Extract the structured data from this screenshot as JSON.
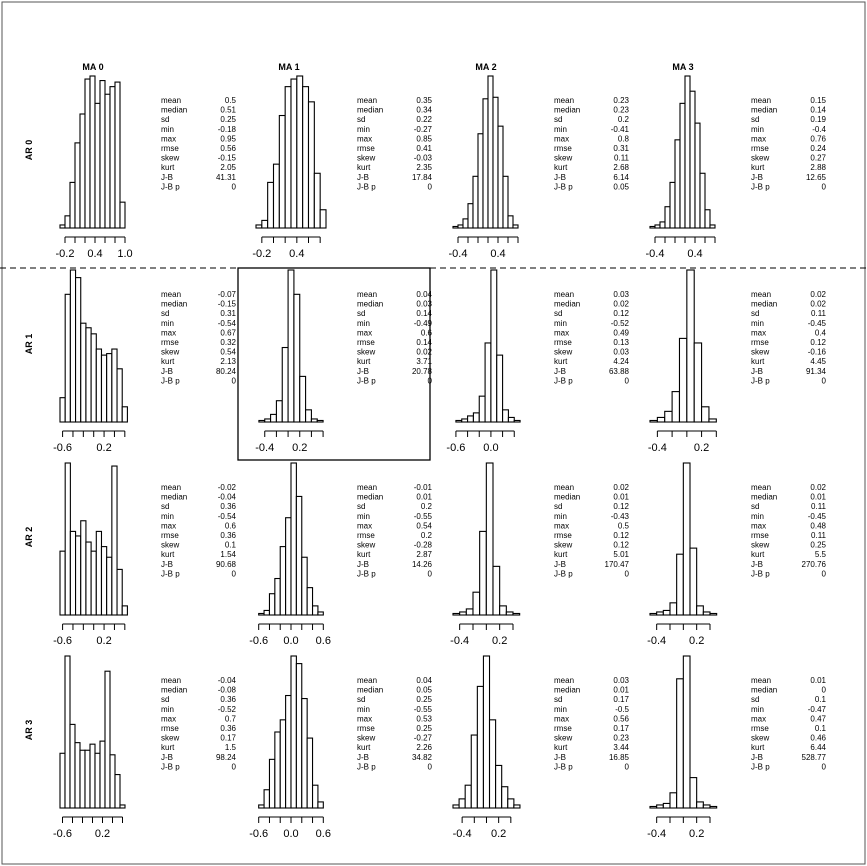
{
  "figure": {
    "col_titles": [
      "MA 0",
      "MA 1",
      "MA 2",
      "MA 3"
    ],
    "row_titles": [
      "AR 0",
      "AR 1",
      "AR 2",
      "AR 3"
    ],
    "stat_labels": [
      "mean",
      "median",
      "sd",
      "min",
      "max",
      "rmse",
      "skew",
      "kurt",
      "J-B",
      "J-B p"
    ],
    "highlighted_cell": {
      "row": 1,
      "col": 1
    },
    "divider_after_row": 0
  },
  "chart_data": [
    {
      "type": "bar",
      "row": 0,
      "col": 0,
      "title": "MA 0",
      "ylabel": "AR 0",
      "xlim": [
        -0.3,
        1.1
      ],
      "bins": [
        -0.25,
        -0.15,
        -0.05,
        0.05,
        0.15,
        0.25,
        0.35,
        0.45,
        0.55,
        0.65,
        0.75,
        0.85,
        0.95
      ],
      "heights": [
        0.02,
        0.08,
        0.3,
        0.56,
        0.75,
        0.98,
        1.0,
        0.82,
        0.97,
        0.88,
        0.93,
        0.96,
        0.17
      ],
      "ticks": [
        -0.2,
        0.0,
        0.2,
        0.4,
        0.6,
        0.8,
        1.0
      ],
      "tick_labels": [
        "-0.2",
        "",
        "",
        "0.4",
        "",
        "",
        "1.0"
      ],
      "stats": [
        "0.5",
        "0.51",
        "0.25",
        "-0.18",
        "0.95",
        "0.56",
        "-0.15",
        "2.05",
        "41.31",
        "0"
      ]
    },
    {
      "type": "bar",
      "row": 0,
      "col": 1,
      "title": "MA 1",
      "ylabel": "",
      "xlim": [
        -0.3,
        0.9
      ],
      "bins": [
        -0.25,
        -0.15,
        -0.05,
        0.05,
        0.15,
        0.25,
        0.35,
        0.45,
        0.55,
        0.65,
        0.75,
        0.85
      ],
      "heights": [
        0.02,
        0.05,
        0.3,
        0.42,
        0.74,
        0.93,
        0.98,
        1.0,
        0.93,
        0.83,
        0.36,
        0.12
      ],
      "ticks": [
        -0.2,
        0.0,
        0.2,
        0.4,
        0.6,
        0.8
      ],
      "tick_labels": [
        "-0.2",
        "",
        "",
        "0.4",
        "",
        ""
      ],
      "stats": [
        "0.35",
        "0.34",
        "0.22",
        "-0.27",
        "0.85",
        "0.41",
        "-0.03",
        "2.35",
        "17.84",
        "0"
      ]
    },
    {
      "type": "bar",
      "row": 0,
      "col": 2,
      "title": "MA 2",
      "ylabel": "",
      "xlim": [
        -0.5,
        0.9
      ],
      "bins": [
        -0.45,
        -0.35,
        -0.25,
        -0.15,
        -0.05,
        0.05,
        0.15,
        0.25,
        0.35,
        0.45,
        0.55,
        0.65,
        0.75
      ],
      "heights": [
        0.01,
        0.02,
        0.06,
        0.16,
        0.34,
        0.62,
        0.85,
        1.0,
        0.86,
        0.67,
        0.34,
        0.08,
        0.02
      ],
      "ticks": [
        -0.4,
        -0.2,
        0.0,
        0.2,
        0.4,
        0.6,
        0.8
      ],
      "tick_labels": [
        "-0.4",
        "",
        "",
        "",
        "0.4",
        "",
        ""
      ],
      "stats": [
        "0.23",
        "0.23",
        "0.2",
        "-0.41",
        "0.8",
        "0.31",
        "0.11",
        "2.68",
        "6.14",
        "0.05"
      ]
    },
    {
      "type": "bar",
      "row": 0,
      "col": 3,
      "title": "MA 3",
      "ylabel": "",
      "xlim": [
        -0.5,
        0.9
      ],
      "bins": [
        -0.45,
        -0.35,
        -0.25,
        -0.15,
        -0.05,
        0.05,
        0.15,
        0.25,
        0.35,
        0.45,
        0.55,
        0.65,
        0.75
      ],
      "heights": [
        0.01,
        0.02,
        0.04,
        0.14,
        0.3,
        0.58,
        0.82,
        1.0,
        0.9,
        0.69,
        0.36,
        0.12,
        0.02
      ],
      "ticks": [
        -0.4,
        -0.2,
        0.0,
        0.2,
        0.4,
        0.6,
        0.8
      ],
      "tick_labels": [
        "-0.4",
        "",
        "",
        "",
        "0.4",
        "",
        ""
      ],
      "stats": [
        "0.15",
        "0.14",
        "0.19",
        "-0.4",
        "0.76",
        "0.24",
        "0.27",
        "2.88",
        "12.65",
        "0"
      ]
    },
    {
      "type": "bar",
      "row": 1,
      "col": 0,
      "title": "",
      "ylabel": "AR 1",
      "xlim": [
        -0.65,
        0.7
      ],
      "bins": [
        -0.6,
        -0.5,
        -0.4,
        -0.3,
        -0.2,
        -0.1,
        0.0,
        0.1,
        0.2,
        0.3,
        0.4,
        0.5,
        0.6
      ],
      "heights": [
        0.16,
        0.84,
        1.0,
        0.95,
        0.65,
        0.62,
        0.58,
        0.48,
        0.44,
        0.45,
        0.48,
        0.35,
        0.1
      ],
      "ticks": [
        -0.6,
        -0.4,
        -0.2,
        0.0,
        0.2,
        0.4,
        0.6
      ],
      "tick_labels": [
        "-0.6",
        "",
        "",
        "",
        "0.2",
        "",
        ""
      ],
      "stats": [
        "-0.07",
        "-0.15",
        "0.31",
        "-0.54",
        "0.67",
        "0.32",
        "0.54",
        "2.13",
        "80.24",
        "0"
      ]
    },
    {
      "type": "bar",
      "row": 1,
      "col": 1,
      "title": "",
      "ylabel": "",
      "xlim": [
        -0.55,
        0.65
      ],
      "bins": [
        -0.45,
        -0.35,
        -0.25,
        -0.15,
        -0.05,
        0.05,
        0.15,
        0.25,
        0.35,
        0.45,
        0.55
      ],
      "heights": [
        0.01,
        0.02,
        0.05,
        0.14,
        0.49,
        1.0,
        0.84,
        0.3,
        0.08,
        0.02,
        0.01
      ],
      "ticks": [
        -0.4,
        -0.2,
        0.0,
        0.2,
        0.4,
        0.6
      ],
      "tick_labels": [
        "-0.4",
        "",
        "",
        "0.2",
        "",
        ""
      ],
      "stats": [
        "0.04",
        "0.03",
        "0.14",
        "-0.49",
        "0.6",
        "0.14",
        "0.02",
        "3.71",
        "20.78",
        "0"
      ]
    },
    {
      "type": "bar",
      "row": 1,
      "col": 2,
      "title": "",
      "ylabel": "",
      "xlim": [
        -0.65,
        0.55
      ],
      "bins": [
        -0.55,
        -0.45,
        -0.35,
        -0.25,
        -0.15,
        -0.05,
        0.05,
        0.15,
        0.25,
        0.35,
        0.45
      ],
      "heights": [
        0.01,
        0.02,
        0.04,
        0.06,
        0.17,
        0.52,
        1.0,
        0.44,
        0.08,
        0.03,
        0.01
      ],
      "ticks": [
        -0.6,
        -0.4,
        -0.2,
        0.0,
        0.2,
        0.4
      ],
      "tick_labels": [
        "-0.6",
        "",
        "",
        "0.0",
        "",
        ""
      ],
      "stats": [
        "0.03",
        "0.02",
        "0.12",
        "-0.52",
        "0.49",
        "0.13",
        "0.03",
        "4.24",
        "63.88",
        "0"
      ]
    },
    {
      "type": "bar",
      "row": 1,
      "col": 3,
      "title": "",
      "ylabel": "",
      "xlim": [
        -0.5,
        0.45
      ],
      "bins": [
        -0.45,
        -0.35,
        -0.25,
        -0.15,
        -0.05,
        0.05,
        0.15,
        0.25,
        0.35
      ],
      "heights": [
        0.01,
        0.03,
        0.07,
        0.2,
        0.55,
        1.0,
        0.52,
        0.1,
        0.02
      ],
      "ticks": [
        -0.4,
        -0.2,
        0.0,
        0.2,
        0.4
      ],
      "tick_labels": [
        "-0.4",
        "",
        "",
        "0.2",
        ""
      ],
      "stats": [
        "0.02",
        "0.02",
        "0.11",
        "-0.45",
        "0.4",
        "0.12",
        "-0.16",
        "4.45",
        "91.34",
        "0"
      ]
    },
    {
      "type": "bar",
      "row": 2,
      "col": 0,
      "title": "",
      "ylabel": "AR 2",
      "xlim": [
        -0.65,
        0.7
      ],
      "bins": [
        -0.6,
        -0.5,
        -0.4,
        -0.3,
        -0.2,
        -0.1,
        0.0,
        0.1,
        0.2,
        0.3,
        0.4,
        0.5,
        0.6
      ],
      "heights": [
        0.42,
        1.0,
        0.55,
        0.52,
        0.62,
        0.48,
        0.42,
        0.55,
        0.45,
        0.38,
        0.98,
        0.3,
        0.06
      ],
      "ticks": [
        -0.6,
        -0.4,
        -0.2,
        0.0,
        0.2,
        0.4,
        0.6
      ],
      "tick_labels": [
        "-0.6",
        "",
        "",
        "",
        "0.2",
        "",
        ""
      ],
      "stats": [
        "-0.02",
        "-0.04",
        "0.36",
        "-0.54",
        "0.6",
        "0.36",
        "0.1",
        "1.54",
        "90.68",
        "0"
      ]
    },
    {
      "type": "bar",
      "row": 2,
      "col": 1,
      "title": "",
      "ylabel": "",
      "xlim": [
        -0.65,
        0.65
      ],
      "bins": [
        -0.55,
        -0.45,
        -0.35,
        -0.25,
        -0.15,
        -0.05,
        0.05,
        0.15,
        0.25,
        0.35,
        0.45,
        0.55
      ],
      "heights": [
        0.01,
        0.03,
        0.14,
        0.24,
        0.45,
        0.64,
        1.0,
        0.78,
        0.38,
        0.18,
        0.06,
        0.02
      ],
      "ticks": [
        -0.6,
        -0.4,
        -0.2,
        0.0,
        0.2,
        0.4,
        0.6
      ],
      "tick_labels": [
        "-0.6",
        "",
        "",
        "0.0",
        "",
        "",
        "0.6"
      ],
      "stats": [
        "-0.01",
        "0.01",
        "0.2",
        "-0.55",
        "0.54",
        "0.2",
        "-0.28",
        "2.87",
        "14.26",
        "0"
      ]
    },
    {
      "type": "bar",
      "row": 2,
      "col": 2,
      "title": "",
      "ylabel": "",
      "xlim": [
        -0.5,
        0.55
      ],
      "bins": [
        -0.45,
        -0.35,
        -0.25,
        -0.15,
        -0.05,
        0.05,
        0.15,
        0.25,
        0.35,
        0.45
      ],
      "heights": [
        0.01,
        0.02,
        0.04,
        0.15,
        0.55,
        1.0,
        0.32,
        0.06,
        0.02,
        0.01
      ],
      "ticks": [
        -0.4,
        -0.2,
        0.0,
        0.2,
        0.4
      ],
      "tick_labels": [
        "-0.4",
        "",
        "",
        "0.2",
        ""
      ],
      "stats": [
        "0.02",
        "0.01",
        "0.12",
        "-0.43",
        "0.5",
        "0.12",
        "0.12",
        "5.01",
        "170.47",
        "0"
      ]
    },
    {
      "type": "bar",
      "row": 2,
      "col": 3,
      "title": "",
      "ylabel": "",
      "xlim": [
        -0.5,
        0.55
      ],
      "bins": [
        -0.45,
        -0.35,
        -0.25,
        -0.15,
        -0.05,
        0.05,
        0.15,
        0.25,
        0.35,
        0.45
      ],
      "heights": [
        0.01,
        0.02,
        0.03,
        0.08,
        0.4,
        1.0,
        0.44,
        0.06,
        0.02,
        0.01
      ],
      "ticks": [
        -0.4,
        -0.2,
        0.0,
        0.2,
        0.4
      ],
      "tick_labels": [
        "-0.4",
        "",
        "",
        "0.2",
        ""
      ],
      "stats": [
        "0.02",
        "0.01",
        "0.11",
        "-0.45",
        "0.48",
        "0.11",
        "0.25",
        "5.5",
        "270.76",
        "0"
      ]
    },
    {
      "type": "bar",
      "row": 3,
      "col": 0,
      "title": "",
      "ylabel": "AR 3",
      "xlim": [
        -0.65,
        0.75
      ],
      "bins": [
        -0.6,
        -0.5,
        -0.4,
        -0.3,
        -0.2,
        -0.1,
        0.0,
        0.1,
        0.2,
        0.3,
        0.4,
        0.5,
        0.6
      ],
      "heights": [
        0.36,
        1.0,
        0.55,
        0.43,
        0.38,
        0.38,
        0.42,
        0.36,
        0.44,
        0.9,
        0.35,
        0.22,
        0.02
      ],
      "ticks": [
        -0.6,
        -0.4,
        -0.2,
        0.0,
        0.2,
        0.4,
        0.6
      ],
      "tick_labels": [
        "-0.6",
        "",
        "",
        "",
        "0.2",
        "",
        ""
      ],
      "stats": [
        "-0.04",
        "-0.08",
        "0.36",
        "-0.52",
        "0.7",
        "0.36",
        "0.17",
        "1.5",
        "98.24",
        "0"
      ]
    },
    {
      "type": "bar",
      "row": 3,
      "col": 1,
      "title": "",
      "ylabel": "",
      "xlim": [
        -0.65,
        0.65
      ],
      "bins": [
        -0.55,
        -0.45,
        -0.35,
        -0.25,
        -0.15,
        -0.05,
        0.05,
        0.15,
        0.25,
        0.35,
        0.45,
        0.55
      ],
      "heights": [
        0.02,
        0.12,
        0.32,
        0.5,
        0.58,
        0.74,
        1.0,
        0.95,
        0.72,
        0.46,
        0.15,
        0.04
      ],
      "ticks": [
        -0.6,
        -0.4,
        -0.2,
        0.0,
        0.2,
        0.4,
        0.6
      ],
      "tick_labels": [
        "-0.6",
        "",
        "",
        "0.0",
        "",
        "",
        "0.6"
      ],
      "stats": [
        "0.04",
        "0.05",
        "0.25",
        "-0.55",
        "0.53",
        "0.25",
        "-0.27",
        "2.26",
        "34.82",
        "0"
      ]
    },
    {
      "type": "bar",
      "row": 3,
      "col": 2,
      "title": "",
      "ylabel": "",
      "xlim": [
        -0.55,
        0.6
      ],
      "bins": [
        -0.5,
        -0.4,
        -0.3,
        -0.2,
        -0.1,
        0.0,
        0.1,
        0.2,
        0.3,
        0.4,
        0.5
      ],
      "heights": [
        0.02,
        0.06,
        0.15,
        0.48,
        0.8,
        1.0,
        0.58,
        0.28,
        0.14,
        0.06,
        0.02
      ],
      "ticks": [
        -0.4,
        -0.2,
        0.0,
        0.2,
        0.4
      ],
      "tick_labels": [
        "-0.4",
        "",
        "",
        "0.2",
        ""
      ],
      "stats": [
        "0.03",
        "0.01",
        "0.17",
        "-0.5",
        "0.56",
        "0.17",
        "0.23",
        "3.44",
        "16.85",
        "0"
      ]
    },
    {
      "type": "bar",
      "row": 3,
      "col": 3,
      "title": "",
      "ylabel": "",
      "xlim": [
        -0.5,
        0.55
      ],
      "bins": [
        -0.45,
        -0.35,
        -0.25,
        -0.15,
        -0.05,
        0.05,
        0.15,
        0.25,
        0.35,
        0.45
      ],
      "heights": [
        0.01,
        0.02,
        0.03,
        0.1,
        0.85,
        1.0,
        0.2,
        0.04,
        0.02,
        0.01
      ],
      "ticks": [
        -0.4,
        -0.2,
        0.0,
        0.2,
        0.4
      ],
      "tick_labels": [
        "-0.4",
        "",
        "",
        "0.2",
        ""
      ],
      "stats": [
        "0.01",
        "0",
        "0.1",
        "-0.47",
        "0.47",
        "0.1",
        "0.46",
        "6.44",
        "528.77",
        "0"
      ]
    }
  ]
}
